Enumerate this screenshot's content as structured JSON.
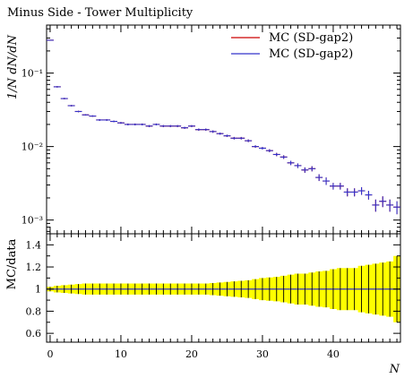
{
  "chart_data": [
    {
      "type": "line",
      "title": "Minus Side - Tower Multiplicity",
      "xlabel": "",
      "ylabel": "1/N dN/dN",
      "yscale": "log",
      "xlim": [
        -0.5,
        49.5
      ],
      "ylim": [
        0.00065,
        0.45
      ],
      "y_ticks": [
        "10⁻³",
        "10⁻²",
        "10⁻¹"
      ],
      "legend_position": "top-right",
      "series": [
        {
          "name": "MC (SD-gap2)",
          "color": "#cc0000",
          "x": [
            0,
            1,
            2,
            3,
            4,
            5,
            6,
            7,
            8,
            9,
            10,
            11,
            12,
            13,
            14,
            15,
            16,
            17,
            18,
            19,
            20,
            21,
            22,
            23,
            24,
            25,
            26,
            27,
            28,
            29,
            30,
            31,
            32,
            33,
            34,
            35,
            36,
            37,
            38,
            39,
            40,
            41,
            42,
            43,
            44,
            45,
            46,
            47,
            48,
            49
          ],
          "y": [
            0.28,
            0.065,
            0.045,
            0.036,
            0.03,
            0.027,
            0.026,
            0.023,
            0.023,
            0.022,
            0.021,
            0.02,
            0.02,
            0.02,
            0.019,
            0.02,
            0.019,
            0.019,
            0.019,
            0.018,
            0.019,
            0.017,
            0.017,
            0.016,
            0.015,
            0.014,
            0.013,
            0.013,
            0.012,
            0.01,
            0.0095,
            0.0088,
            0.0078,
            0.0072,
            0.006,
            0.0055,
            0.0048,
            0.005,
            0.0038,
            0.0034,
            0.0029,
            0.0029,
            0.0024,
            0.0024,
            0.0025,
            0.0022,
            0.0016,
            0.0018,
            0.0016,
            0.0015
          ],
          "yerr": [
            0.003,
            0.0015,
            0.001,
            0.0008,
            0.0007,
            0.0006,
            0.0006,
            0.0006,
            0.0006,
            0.0006,
            0.0006,
            0.0006,
            0.0006,
            0.0006,
            0.0006,
            0.0006,
            0.0006,
            0.0006,
            0.0006,
            0.0006,
            0.0006,
            0.0006,
            0.0006,
            0.0006,
            0.0005,
            0.0005,
            0.0005,
            0.0005,
            0.0005,
            0.0004,
            0.0004,
            0.0004,
            0.0004,
            0.0004,
            0.0004,
            0.0004,
            0.0004,
            0.0004,
            0.0004,
            0.0004,
            0.0003,
            0.0003,
            0.0003,
            0.0003,
            0.0003,
            0.0003,
            0.0003,
            0.0003,
            0.0003,
            0.0003
          ]
        },
        {
          "name": "MC (SD-gap2)",
          "color": "#3333cc",
          "x": [
            0,
            1,
            2,
            3,
            4,
            5,
            6,
            7,
            8,
            9,
            10,
            11,
            12,
            13,
            14,
            15,
            16,
            17,
            18,
            19,
            20,
            21,
            22,
            23,
            24,
            25,
            26,
            27,
            28,
            29,
            30,
            31,
            32,
            33,
            34,
            35,
            36,
            37,
            38,
            39,
            40,
            41,
            42,
            43,
            44,
            45,
            46,
            47,
            48,
            49
          ],
          "y": [
            0.28,
            0.065,
            0.045,
            0.036,
            0.03,
            0.027,
            0.026,
            0.023,
            0.023,
            0.022,
            0.021,
            0.02,
            0.02,
            0.02,
            0.019,
            0.02,
            0.019,
            0.019,
            0.019,
            0.018,
            0.019,
            0.017,
            0.017,
            0.016,
            0.015,
            0.014,
            0.013,
            0.013,
            0.012,
            0.01,
            0.0095,
            0.0088,
            0.0078,
            0.0072,
            0.006,
            0.0055,
            0.0048,
            0.005,
            0.0038,
            0.0034,
            0.0029,
            0.0029,
            0.0024,
            0.0024,
            0.0025,
            0.0022,
            0.0016,
            0.0018,
            0.0016,
            0.0015
          ],
          "yerr": [
            0.003,
            0.0015,
            0.001,
            0.0008,
            0.0007,
            0.0006,
            0.0006,
            0.0006,
            0.0006,
            0.0006,
            0.0006,
            0.0006,
            0.0006,
            0.0006,
            0.0006,
            0.0006,
            0.0006,
            0.0006,
            0.0006,
            0.0006,
            0.0006,
            0.0006,
            0.0006,
            0.0006,
            0.0005,
            0.0005,
            0.0005,
            0.0005,
            0.0005,
            0.0004,
            0.0004,
            0.0004,
            0.0004,
            0.0004,
            0.0004,
            0.0004,
            0.0004,
            0.0004,
            0.0004,
            0.0004,
            0.0003,
            0.0003,
            0.0003,
            0.0003,
            0.0003,
            0.0003,
            0.0003,
            0.0003,
            0.0003,
            0.0003
          ]
        }
      ]
    },
    {
      "type": "area",
      "title": "",
      "xlabel": "N",
      "ylabel": "MC/data",
      "xlim": [
        -0.5,
        49.5
      ],
      "ylim": [
        0.52,
        1.5
      ],
      "x_ticks": [
        0,
        10,
        20,
        30,
        40
      ],
      "y_ticks": [
        0.6,
        0.8,
        1,
        1.2,
        1.4
      ],
      "band_color": "#ffff00",
      "ratio": 1.0,
      "band_halfwidth": [
        0.02,
        0.03,
        0.035,
        0.04,
        0.045,
        0.05,
        0.05,
        0.05,
        0.05,
        0.05,
        0.05,
        0.05,
        0.05,
        0.05,
        0.05,
        0.05,
        0.05,
        0.05,
        0.05,
        0.05,
        0.05,
        0.05,
        0.05,
        0.055,
        0.06,
        0.065,
        0.07,
        0.075,
        0.08,
        0.09,
        0.1,
        0.105,
        0.11,
        0.12,
        0.13,
        0.14,
        0.14,
        0.15,
        0.16,
        0.165,
        0.18,
        0.19,
        0.19,
        0.19,
        0.21,
        0.22,
        0.23,
        0.24,
        0.25,
        0.3
      ]
    }
  ]
}
